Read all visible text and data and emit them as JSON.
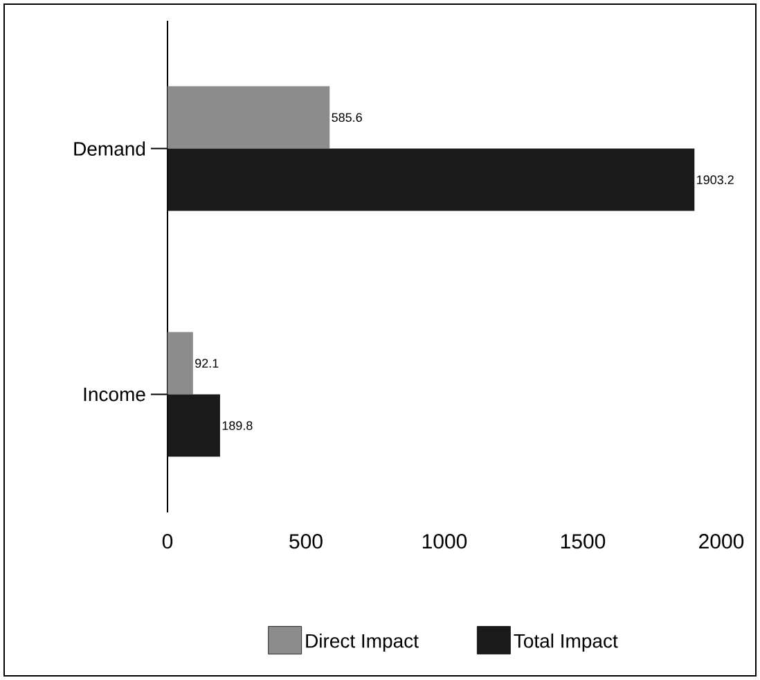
{
  "chart_data": {
    "type": "bar",
    "orientation": "horizontal",
    "categories": [
      "Demand",
      "Income"
    ],
    "series": [
      {
        "name": "Direct Impact",
        "color": "#8c8c8c",
        "values": [
          585.6,
          92.1
        ]
      },
      {
        "name": "Total Impact",
        "color": "#1a1a1a",
        "values": [
          1903.2,
          189.8
        ]
      }
    ],
    "xlim": [
      0,
      2000
    ],
    "xticks": [
      0,
      500,
      1000,
      1500,
      2000
    ],
    "data_labels": true,
    "legend": "bottom"
  }
}
